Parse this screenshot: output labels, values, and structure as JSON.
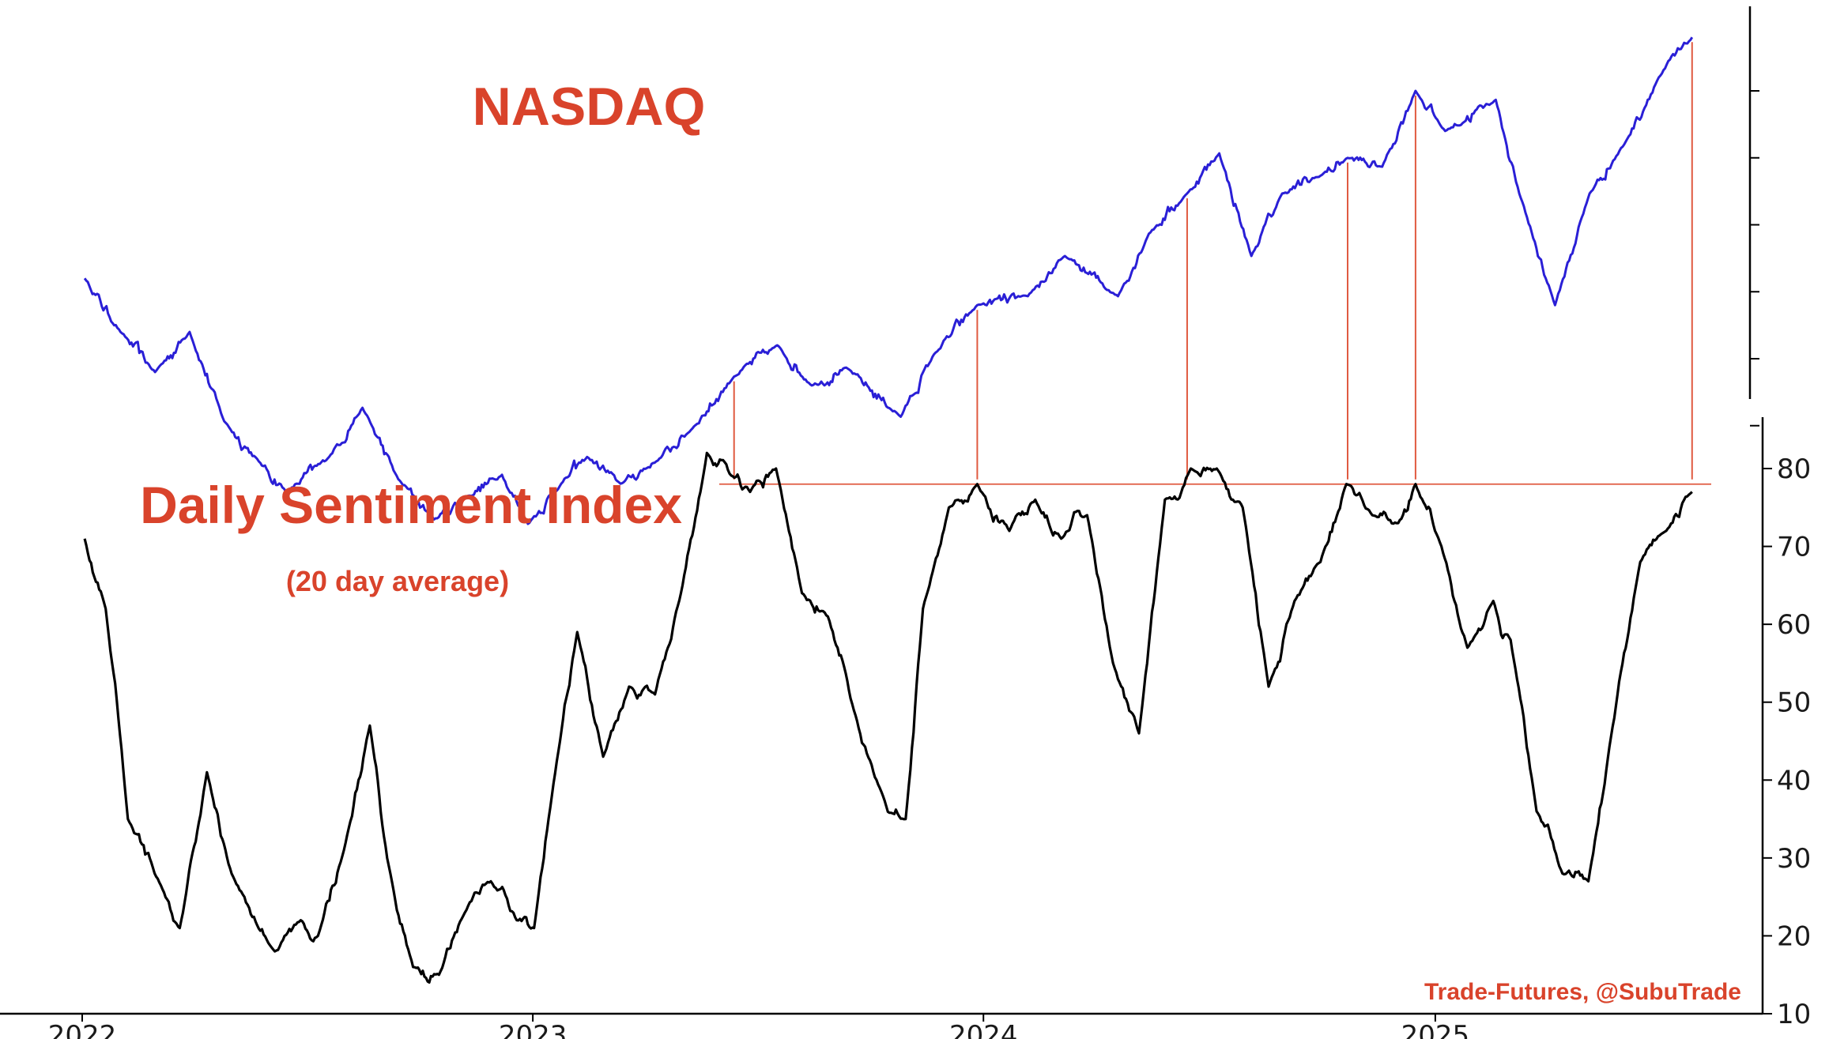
{
  "chart_data": [
    {
      "type": "line",
      "title": "NASDAQ",
      "color": "#2a1fd6",
      "right_axis": "unlabeled",
      "x": [
        "2022-01-03",
        "2022-02-01",
        "2022-03-01",
        "2022-03-29",
        "2022-04-26",
        "2022-05-24",
        "2022-06-16",
        "2022-07-20",
        "2022-08-16",
        "2022-09-14",
        "2022-10-13",
        "2022-11-08",
        "2022-12-07",
        "2022-12-28",
        "2023-01-24",
        "2023-02-14",
        "2023-03-13",
        "2023-04-11",
        "2023-05-09",
        "2023-06-13",
        "2023-07-18",
        "2023-08-15",
        "2023-09-12",
        "2023-10-26",
        "2023-11-22",
        "2023-12-27",
        "2024-02-06",
        "2024-03-07",
        "2024-04-19",
        "2024-05-14",
        "2024-06-14",
        "2024-07-10",
        "2024-08-05",
        "2024-08-30",
        "2024-09-30",
        "2024-10-22",
        "2024-11-19",
        "2024-12-16",
        "2025-01-09",
        "2025-02-19",
        "2025-03-10",
        "2025-04-08",
        "2025-05-06",
        "2025-06-03",
        "2025-07-01",
        "2025-07-28"
      ],
      "y": [
        15800,
        14600,
        13700,
        14600,
        12600,
        11700,
        11000,
        11800,
        12900,
        11300,
        10400,
        10900,
        11400,
        10300,
        11200,
        11800,
        11200,
        11700,
        12400,
        13600,
        14300,
        13400,
        13800,
        12700,
        14100,
        15200,
        15400,
        16300,
        15400,
        16800,
        17700,
        18600,
        16300,
        17700,
        18100,
        18500,
        18300,
        20000,
        19100,
        19800,
        17700,
        15200,
        17700,
        18800,
        20300,
        21200
      ],
      "markers": [
        "2023-06-13",
        "2023-12-27",
        "2024-06-14",
        "2024-10-22",
        "2024-12-16",
        "2025-07-28"
      ]
    },
    {
      "type": "line",
      "title": "Daily Sentiment Index",
      "subtitle": "(20 day average)",
      "color": "#000000",
      "ylim": [
        10,
        85
      ],
      "yticks": [
        10,
        20,
        30,
        40,
        50,
        60,
        70,
        80
      ],
      "threshold": 78,
      "x": [
        "2022-01-03",
        "2022-01-20",
        "2022-02-07",
        "2022-03-07",
        "2022-03-21",
        "2022-04-12",
        "2022-05-02",
        "2022-06-06",
        "2022-06-27",
        "2022-07-11",
        "2022-08-01",
        "2022-08-22",
        "2022-09-05",
        "2022-09-26",
        "2022-10-17",
        "2022-11-07",
        "2022-11-28",
        "2022-12-19",
        "2023-01-02",
        "2023-01-23",
        "2023-02-06",
        "2023-02-27",
        "2023-03-20",
        "2023-04-10",
        "2023-05-01",
        "2023-05-22",
        "2023-06-12",
        "2023-06-26",
        "2023-07-17",
        "2023-08-07",
        "2023-08-28",
        "2023-09-18",
        "2023-10-09",
        "2023-10-30",
        "2023-11-13",
        "2023-12-04",
        "2023-12-27",
        "2024-01-22",
        "2024-02-12",
        "2024-03-04",
        "2024-03-25",
        "2024-04-15",
        "2024-05-06",
        "2024-05-27",
        "2024-06-17",
        "2024-07-08",
        "2024-07-29",
        "2024-08-19",
        "2024-09-09",
        "2024-09-30",
        "2024-10-21",
        "2024-11-11",
        "2024-12-02",
        "2024-12-16",
        "2025-01-06",
        "2025-01-27",
        "2025-02-17",
        "2025-03-03",
        "2025-03-24",
        "2025-04-14",
        "2025-05-05",
        "2025-05-26",
        "2025-06-16",
        "2025-07-07",
        "2025-07-28"
      ],
      "y": [
        71,
        62,
        35,
        26,
        21,
        41,
        28,
        18,
        22,
        20,
        31,
        47,
        30,
        16,
        15,
        23,
        27,
        22,
        21,
        45,
        59,
        43,
        52,
        51,
        64,
        82,
        79,
        77,
        80,
        64,
        61,
        49,
        39,
        35,
        62,
        75,
        78,
        72,
        76,
        71,
        74,
        55,
        46,
        76,
        80,
        80,
        75,
        52,
        63,
        68,
        78,
        74,
        73,
        78,
        70,
        57,
        63,
        58,
        36,
        28,
        27,
        48,
        68,
        72,
        77
      ]
    }
  ],
  "x_axis": {
    "ticks": [
      "2022",
      "2023",
      "2024",
      "2025"
    ]
  },
  "credit": "Trade-Futures, @SubuTrade"
}
